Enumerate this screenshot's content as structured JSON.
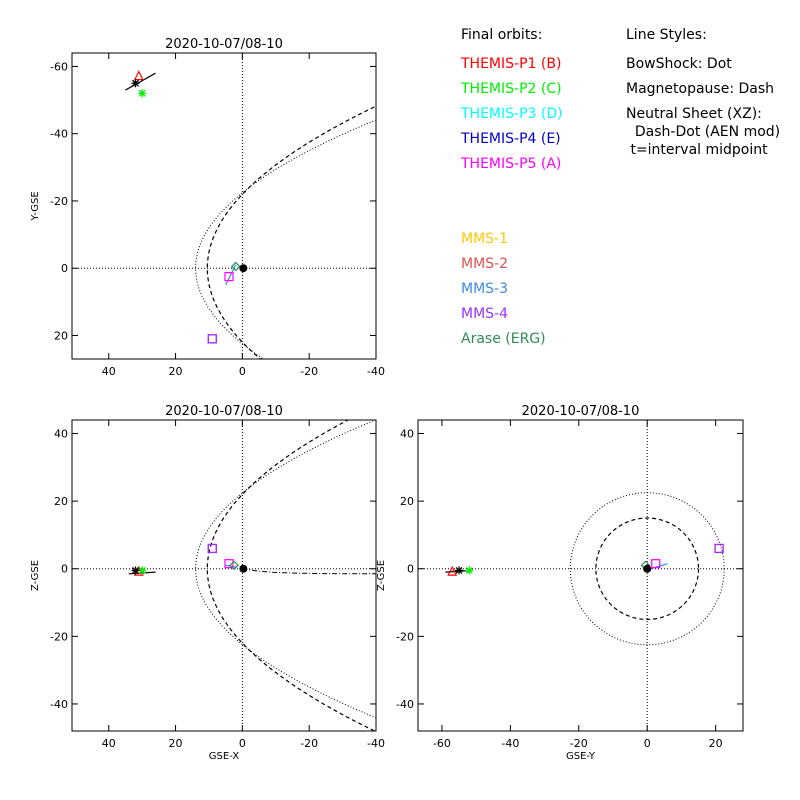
{
  "chart_data": {
    "type": "scatter",
    "legend": {
      "orbits_title": "Final orbits:",
      "styles_title": "Line Styles:",
      "themis": [
        {
          "label": "THEMIS-P1 (B)",
          "color": "#ff0000"
        },
        {
          "label": "THEMIS-P2 (C)",
          "color": "#00ee00"
        },
        {
          "label": "THEMIS-P3 (D)",
          "color": "#00ffff"
        },
        {
          "label": "THEMIS-P4 (E)",
          "color": "#0000cc"
        },
        {
          "label": "THEMIS-P5 (A)",
          "color": "#ff00ff"
        }
      ],
      "mms": [
        {
          "label": "MMS-1",
          "color": "#ffc800"
        },
        {
          "label": "MMS-2",
          "color": "#e05050"
        },
        {
          "label": "MMS-3",
          "color": "#3c8ce0"
        },
        {
          "label": "MMS-4",
          "color": "#9b30ff"
        },
        {
          "label": "Arase (ERG)",
          "color": "#2e8b57"
        }
      ],
      "styles": [
        "BowShock: Dot",
        "Magnetopause: Dash",
        "Neutral Sheet (XZ):",
        "  Dash-Dot (AEN mod)",
        " t=interval midpoint"
      ]
    },
    "panels": [
      {
        "id": "xy",
        "title": "2020-10-07/08-10",
        "xlabel": "",
        "ylabel": "Y-GSE",
        "xlim": [
          51,
          -40
        ],
        "ylim": [
          27,
          -64
        ],
        "xticks": [
          40,
          20,
          0,
          -20,
          -40
        ],
        "yticks": [
          -60,
          -40,
          -20,
          0,
          20
        ],
        "markers": [
          {
            "sym": "triangle",
            "x": 31,
            "y": -57,
            "color": "#ff0000"
          },
          {
            "sym": "star",
            "x": 30,
            "y": -52,
            "color": "#00ee00"
          },
          {
            "sym": "star",
            "x": 32,
            "y": -55,
            "color": "#000000"
          },
          {
            "sym": "square",
            "x": 9,
            "y": 21,
            "color": "#ff00ff"
          },
          {
            "sym": "square",
            "x": 9,
            "y": 21,
            "color": "#9b30ff"
          },
          {
            "sym": "square",
            "x": 4,
            "y": 2.5,
            "color": "#ff00ff"
          },
          {
            "sym": "diamond",
            "x": 2,
            "y": -0.5,
            "color": "#2e8b57"
          },
          {
            "sym": "circle",
            "x": -0.3,
            "y": 0,
            "color": "#000000"
          }
        ],
        "tracks": [
          {
            "color": "#000000",
            "points": [
              [
                26,
                -58
              ],
              [
                35,
                -53
              ]
            ]
          },
          {
            "color": "#3c8ce0",
            "points": [
              [
                5,
                5
              ],
              [
                3.5,
                2
              ],
              [
                2,
                -1
              ]
            ]
          }
        ]
      },
      {
        "id": "xz",
        "title": "2020-10-07/08-10",
        "xlabel": "GSE-X",
        "ylabel": "Z-GSE",
        "xlim": [
          51,
          -40
        ],
        "ylim": [
          -48,
          44
        ],
        "xticks": [
          40,
          20,
          0,
          -20,
          -40
        ],
        "yticks": [
          40,
          20,
          0,
          -20,
          -40
        ],
        "markers": [
          {
            "sym": "triangle",
            "x": 31,
            "y": -1,
            "color": "#ff0000"
          },
          {
            "sym": "star",
            "x": 30,
            "y": -0.5,
            "color": "#00ee00"
          },
          {
            "sym": "star",
            "x": 32,
            "y": -0.5,
            "color": "#000000"
          },
          {
            "sym": "square",
            "x": 9,
            "y": 6,
            "color": "#ff00ff"
          },
          {
            "sym": "square",
            "x": 9,
            "y": 6,
            "color": "#9b30ff"
          },
          {
            "sym": "square",
            "x": 4,
            "y": 1.5,
            "color": "#ff00ff"
          },
          {
            "sym": "diamond",
            "x": 2.5,
            "y": 1,
            "color": "#2e8b57"
          },
          {
            "sym": "circle",
            "x": -0.3,
            "y": 0,
            "color": "#000000"
          }
        ],
        "tracks": [
          {
            "color": "#000000",
            "points": [
              [
                26,
                -1
              ],
              [
                34,
                -1.5
              ]
            ]
          },
          {
            "color": "#3c8ce0",
            "points": [
              [
                5,
                1
              ],
              [
                2,
                0.5
              ]
            ]
          }
        ]
      },
      {
        "id": "yz",
        "title": "2020-10-07/08-10",
        "xlabel": "GSE-Y",
        "ylabel": "Z-GSE",
        "xlim": [
          -67,
          28
        ],
        "ylim": [
          -48,
          44
        ],
        "xticks": [
          -60,
          -40,
          -20,
          0,
          20
        ],
        "yticks": [
          40,
          20,
          0,
          -20,
          -40
        ],
        "markers": [
          {
            "sym": "triangle",
            "x": -57,
            "y": -1,
            "color": "#ff0000"
          },
          {
            "sym": "star",
            "x": -52,
            "y": -0.5,
            "color": "#00ee00"
          },
          {
            "sym": "star",
            "x": -55,
            "y": -0.5,
            "color": "#000000"
          },
          {
            "sym": "square",
            "x": 21,
            "y": 6,
            "color": "#ff00ff"
          },
          {
            "sym": "square",
            "x": 21,
            "y": 6,
            "color": "#9b30ff"
          },
          {
            "sym": "square",
            "x": 2.5,
            "y": 1.5,
            "color": "#ff00ff"
          },
          {
            "sym": "diamond",
            "x": -0.5,
            "y": 1,
            "color": "#2e8b57"
          },
          {
            "sym": "circle",
            "x": 0,
            "y": 0,
            "color": "#000000"
          }
        ],
        "tracks": [
          {
            "color": "#000000",
            "points": [
              [
                -59,
                -1
              ],
              [
                -51,
                -0.5
              ]
            ]
          },
          {
            "color": "#3c8ce0",
            "points": [
              [
                1,
                0
              ],
              [
                6,
                1.5
              ]
            ]
          }
        ]
      }
    ]
  }
}
